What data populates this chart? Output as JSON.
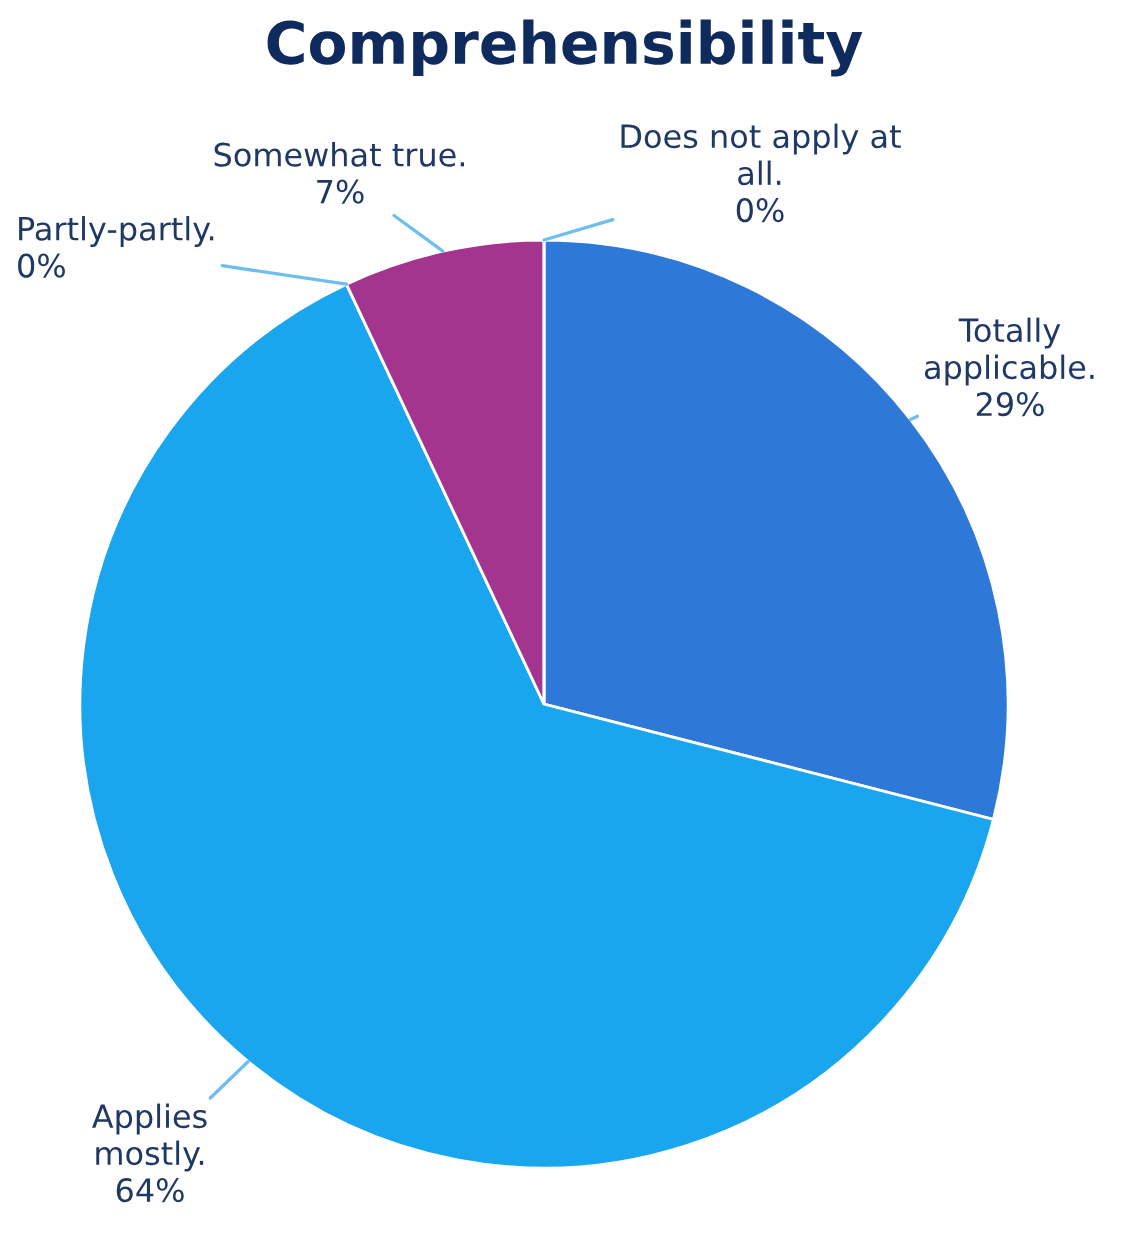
{
  "chart_data": {
    "type": "pie",
    "title": "Comprehensibility",
    "categories": [
      "Totally applicable.",
      "Applies mostly.",
      "Partly-partly.",
      "Somewhat true.",
      "Does not apply at all."
    ],
    "values": [
      29,
      64,
      0,
      7,
      0
    ],
    "value_labels": [
      "29%",
      "64%",
      "0%",
      "7%",
      "0%"
    ],
    "colors": [
      "#2e78d8",
      "#1aa6ee",
      "#3a8fd0",
      "#a3358f",
      "#5a9ad8"
    ]
  }
}
